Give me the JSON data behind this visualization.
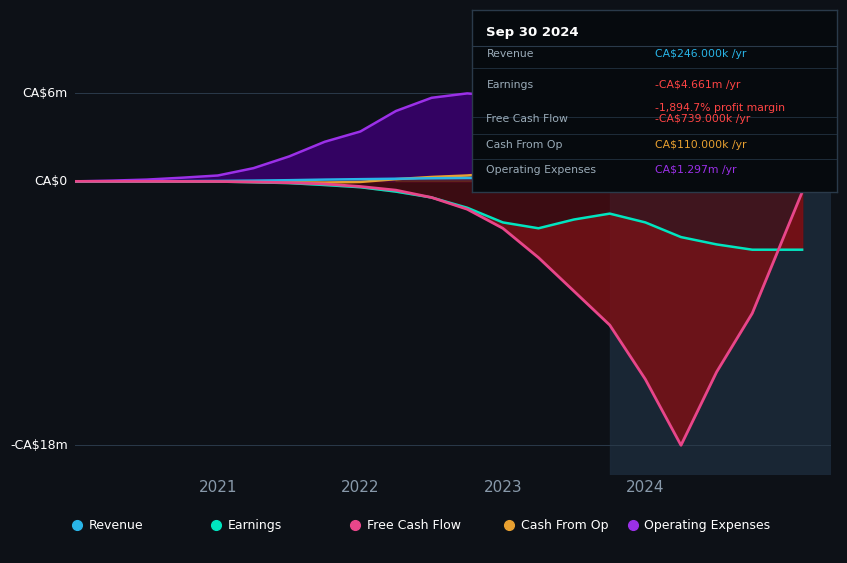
{
  "bg_color": "#0d1117",
  "chart_bg": "#0d1117",
  "ylabel_ca6": "CA$6m",
  "ylabel_ca0": "CA$0",
  "ylabel_ca18": "-CA$18m",
  "ylim": [
    -20000000,
    7500000
  ],
  "xlim": [
    2020.0,
    2025.3
  ],
  "xticks": [
    2021,
    2022,
    2023,
    2024
  ],
  "highlight_start": 2023.75,
  "highlight_end": 2025.3,
  "legend": [
    {
      "label": "Revenue",
      "color": "#29b5e8"
    },
    {
      "label": "Earnings",
      "color": "#00e5c0"
    },
    {
      "label": "Free Cash Flow",
      "color": "#e8468a"
    },
    {
      "label": "Cash From Op",
      "color": "#e8a030"
    },
    {
      "label": "Operating Expenses",
      "color": "#9b30e8"
    }
  ],
  "series": {
    "x": [
      2020.0,
      2020.25,
      2020.5,
      2020.75,
      2021.0,
      2021.25,
      2021.5,
      2021.75,
      2022.0,
      2022.25,
      2022.5,
      2022.75,
      2023.0,
      2023.25,
      2023.5,
      2023.75,
      2024.0,
      2024.25,
      2024.5,
      2024.75,
      2025.1
    ],
    "operating_expenses": [
      0,
      50000,
      120000,
      250000,
      400000,
      900000,
      1700000,
      2700000,
      3400000,
      4800000,
      5700000,
      6000000,
      5800000,
      4600000,
      3200000,
      2600000,
      3000000,
      3800000,
      4300000,
      4000000,
      1297000
    ],
    "cash_from_op": [
      0,
      0,
      0,
      -5000,
      -10000,
      -30000,
      -60000,
      -80000,
      -40000,
      150000,
      300000,
      400000,
      600000,
      700000,
      500000,
      250000,
      -80000,
      -150000,
      -200000,
      -80000,
      110000
    ],
    "revenue": [
      0,
      0,
      5000,
      15000,
      30000,
      50000,
      80000,
      120000,
      150000,
      180000,
      210000,
      230000,
      240000,
      244000,
      246000,
      246000,
      246000,
      246000,
      246000,
      246000,
      246000
    ],
    "earnings": [
      0,
      0,
      -2000,
      -8000,
      -15000,
      -60000,
      -120000,
      -250000,
      -400000,
      -700000,
      -1100000,
      -1800000,
      -2800000,
      -3200000,
      -2600000,
      -2200000,
      -2800000,
      -3800000,
      -4300000,
      -4661000,
      -4661000
    ],
    "free_cash_flow": [
      0,
      0,
      -1000,
      -4000,
      -8000,
      -40000,
      -90000,
      -180000,
      -350000,
      -600000,
      -1100000,
      -1900000,
      -3200000,
      -5200000,
      -7500000,
      -9800000,
      -13500000,
      -18000000,
      -13000000,
      -9000000,
      -739000
    ]
  }
}
